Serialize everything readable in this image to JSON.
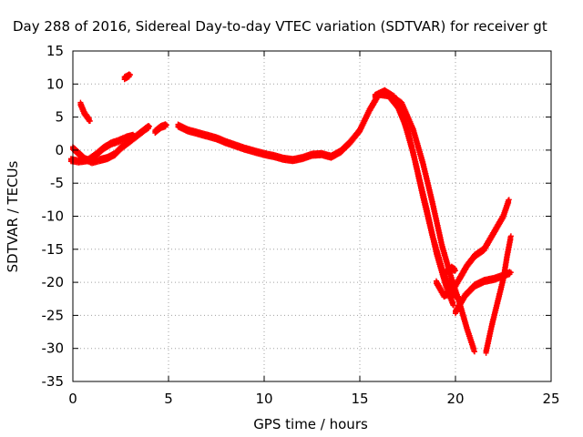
{
  "chart_data": {
    "type": "scatter",
    "title": "Day 288 of 2016, Sidereal Day-to-day VTEC variation (SDTVAR) for receiver gt",
    "xlabel": "GPS time / hours",
    "ylabel": "SDTVAR / TECUs",
    "xlim": [
      0,
      25
    ],
    "ylim": [
      -35,
      15
    ],
    "xticks": [
      "0",
      "5",
      "10",
      "15",
      "20",
      "25"
    ],
    "yticks": [
      "15",
      "10",
      "5",
      "0",
      "-5",
      "-10",
      "-15",
      "-20",
      "-25",
      "-30",
      "-35"
    ],
    "grid": true,
    "marker": "plus",
    "colors": {
      "points": "#ff0000",
      "grid": "#a0a0a0",
      "axes": "#000000"
    },
    "series": [
      {
        "segments": [
          [
            [
              0.0,
              0.3
            ],
            [
              0.3,
              -0.5
            ],
            [
              0.6,
              -1.3
            ],
            [
              1.0,
              -1.8
            ],
            [
              1.4,
              -1.5
            ],
            [
              1.8,
              -1.2
            ],
            [
              2.2,
              -0.6
            ],
            [
              2.5,
              0.3
            ],
            [
              3.0,
              1.4
            ],
            [
              3.4,
              2.3
            ],
            [
              3.8,
              3.2
            ],
            [
              4.0,
              3.6
            ]
          ],
          [
            [
              -0.1,
              -1.5
            ],
            [
              0.3,
              -1.7
            ],
            [
              0.8,
              -1.5
            ],
            [
              1.2,
              -0.7
            ],
            [
              1.6,
              0.3
            ],
            [
              2.0,
              1.0
            ],
            [
              2.4,
              1.4
            ],
            [
              2.8,
              1.9
            ],
            [
              3.2,
              2.2
            ]
          ],
          [
            [
              0.4,
              7.0
            ],
            [
              0.6,
              5.6
            ],
            [
              0.9,
              4.4
            ]
          ],
          [
            [
              2.7,
              10.9
            ],
            [
              3.0,
              11.4
            ]
          ],
          [
            [
              4.3,
              2.8
            ],
            [
              4.6,
              3.5
            ],
            [
              4.9,
              3.8
            ]
          ],
          [
            [
              5.5,
              3.7
            ],
            [
              6.0,
              3.0
            ],
            [
              6.5,
              2.6
            ],
            [
              7.0,
              2.2
            ],
            [
              7.5,
              1.8
            ],
            [
              8.0,
              1.2
            ],
            [
              8.5,
              0.7
            ],
            [
              9.0,
              0.2
            ],
            [
              9.5,
              -0.2
            ],
            [
              10.0,
              -0.6
            ],
            [
              10.5,
              -0.9
            ],
            [
              11.0,
              -1.3
            ],
            [
              11.5,
              -1.5
            ],
            [
              12.0,
              -1.2
            ],
            [
              12.5,
              -0.7
            ],
            [
              13.0,
              -0.6
            ],
            [
              13.5,
              -1.0
            ],
            [
              14.0,
              -0.2
            ],
            [
              14.5,
              1.2
            ],
            [
              15.0,
              3.0
            ],
            [
              15.5,
              6.0
            ],
            [
              16.0,
              8.5
            ],
            [
              16.5,
              8.3
            ],
            [
              17.0,
              6.5
            ],
            [
              17.5,
              3.0
            ],
            [
              18.0,
              -3.0
            ],
            [
              18.5,
              -9.0
            ],
            [
              19.0,
              -15.5
            ],
            [
              19.5,
              -20.5
            ],
            [
              19.9,
              -23.5
            ]
          ],
          [
            [
              15.8,
              8.2
            ],
            [
              16.3,
              8.9
            ],
            [
              16.8,
              8.0
            ],
            [
              17.3,
              4.5
            ],
            [
              17.8,
              -0.5
            ],
            [
              18.3,
              -7.0
            ],
            [
              18.8,
              -13.0
            ],
            [
              19.3,
              -18.0
            ],
            [
              19.8,
              -21.5
            ],
            [
              20.2,
              -22.5
            ]
          ],
          [
            [
              16.5,
              8.5
            ],
            [
              17.2,
              7.0
            ],
            [
              17.8,
              3.0
            ],
            [
              18.3,
              -2.0
            ],
            [
              18.8,
              -8.0
            ],
            [
              19.3,
              -14.5
            ],
            [
              19.8,
              -19.5
            ],
            [
              20.2,
              -23.0
            ],
            [
              20.6,
              -27.0
            ],
            [
              21.0,
              -30.5
            ]
          ],
          [
            [
              19.0,
              -20.0
            ],
            [
              19.4,
              -22.0
            ],
            [
              19.8,
              -21.5
            ],
            [
              20.2,
              -19.5
            ],
            [
              20.6,
              -17.5
            ],
            [
              21.0,
              -16.0
            ],
            [
              21.5,
              -15.0
            ],
            [
              22.0,
              -12.5
            ],
            [
              22.5,
              -10.0
            ],
            [
              22.8,
              -7.5
            ]
          ],
          [
            [
              20.0,
              -24.5
            ],
            [
              20.5,
              -22.0
            ],
            [
              21.0,
              -20.5
            ],
            [
              21.5,
              -19.8
            ],
            [
              22.0,
              -19.5
            ],
            [
              22.5,
              -19.0
            ],
            [
              22.9,
              -18.5
            ]
          ],
          [
            [
              21.6,
              -30.5
            ],
            [
              21.9,
              -26.5
            ],
            [
              22.2,
              -23.0
            ],
            [
              22.5,
              -19.5
            ],
            [
              22.7,
              -16.0
            ],
            [
              22.9,
              -13.0
            ]
          ],
          [
            [
              19.5,
              -18.5
            ],
            [
              19.8,
              -17.8
            ],
            [
              20.0,
              -18.2
            ]
          ]
        ]
      }
    ]
  }
}
